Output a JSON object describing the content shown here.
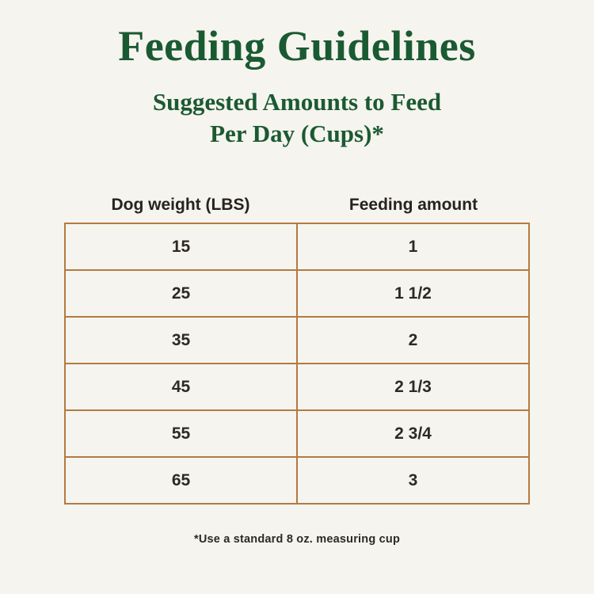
{
  "header": {
    "title": "Feeding Guidelines",
    "subtitle_line1": "Suggested Amounts to Feed",
    "subtitle_line2": "Per Day (Cups)*"
  },
  "chart_data": {
    "type": "table",
    "title": "Feeding Guidelines",
    "subtitle": "Suggested Amounts to Feed Per Day (Cups)*",
    "columns": [
      "Dog weight (LBS)",
      "Feeding amount"
    ],
    "rows": [
      {
        "weight": "15",
        "amount": "1"
      },
      {
        "weight": "25",
        "amount": "1 1/2"
      },
      {
        "weight": "35",
        "amount": "2"
      },
      {
        "weight": "45",
        "amount": "2 1/3"
      },
      {
        "weight": "55",
        "amount": "2 3/4"
      },
      {
        "weight": "65",
        "amount": "3"
      }
    ],
    "footnote": "*Use a standard 8 oz. measuring cup"
  },
  "table_headers": {
    "col1": "Dog weight (LBS)",
    "col2": "Feeding amount"
  },
  "footnote": "*Use a standard 8 oz. measuring cup",
  "colors": {
    "title_green": "#1a5a32",
    "table_border_brown": "#b37a43",
    "background_cream": "#f6f4ee",
    "text_dark": "#2d2a25"
  }
}
